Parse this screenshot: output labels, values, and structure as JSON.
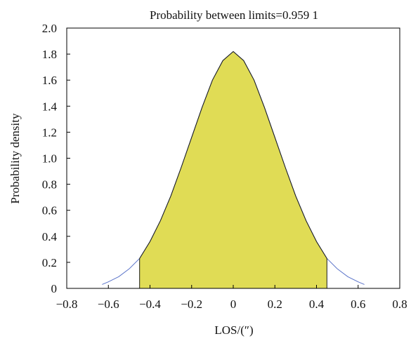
{
  "chart_data": {
    "type": "area",
    "title": "Probability between limits=0.959 1",
    "xlabel": "LOS/(″)",
    "ylabel": "Probability density",
    "xlim": [
      -0.8,
      0.8
    ],
    "ylim": [
      0,
      2.0
    ],
    "xticks": [
      "−0.8",
      "−0.6",
      "−0.4",
      "−0.2",
      "0",
      "0.2",
      "0.4",
      "0.6",
      "0.8"
    ],
    "yticks": [
      "0",
      "0.2",
      "0.4",
      "0.6",
      "0.8",
      "1.0",
      "1.2",
      "1.4",
      "1.6",
      "1.8",
      "2.0"
    ],
    "grid": false,
    "series": [
      {
        "x": [
          -0.63,
          -0.6,
          -0.55,
          -0.5,
          -0.45,
          -0.4,
          -0.35,
          -0.3,
          -0.25,
          -0.2,
          -0.15,
          -0.1,
          -0.05,
          0,
          0.05,
          0.1,
          0.15,
          0.2,
          0.25,
          0.3,
          0.35,
          0.4,
          0.45,
          0.5,
          0.55,
          0.6,
          0.63
        ],
        "y": [
          0.03,
          0.05,
          0.09,
          0.15,
          0.23,
          0.36,
          0.52,
          0.71,
          0.93,
          1.16,
          1.39,
          1.6,
          1.75,
          1.82,
          1.75,
          1.6,
          1.39,
          1.16,
          0.93,
          0.71,
          0.52,
          0.36,
          0.23,
          0.15,
          0.09,
          0.05,
          0.03
        ]
      }
    ],
    "shaded_limits": [
      -0.45,
      0.45
    ],
    "probability_between_limits": 0.9591,
    "colors": {
      "curve": "#5b74c9",
      "shaded_curve": "#1a1a1a",
      "fill": "#e0dc55",
      "axis": "#000000"
    }
  }
}
